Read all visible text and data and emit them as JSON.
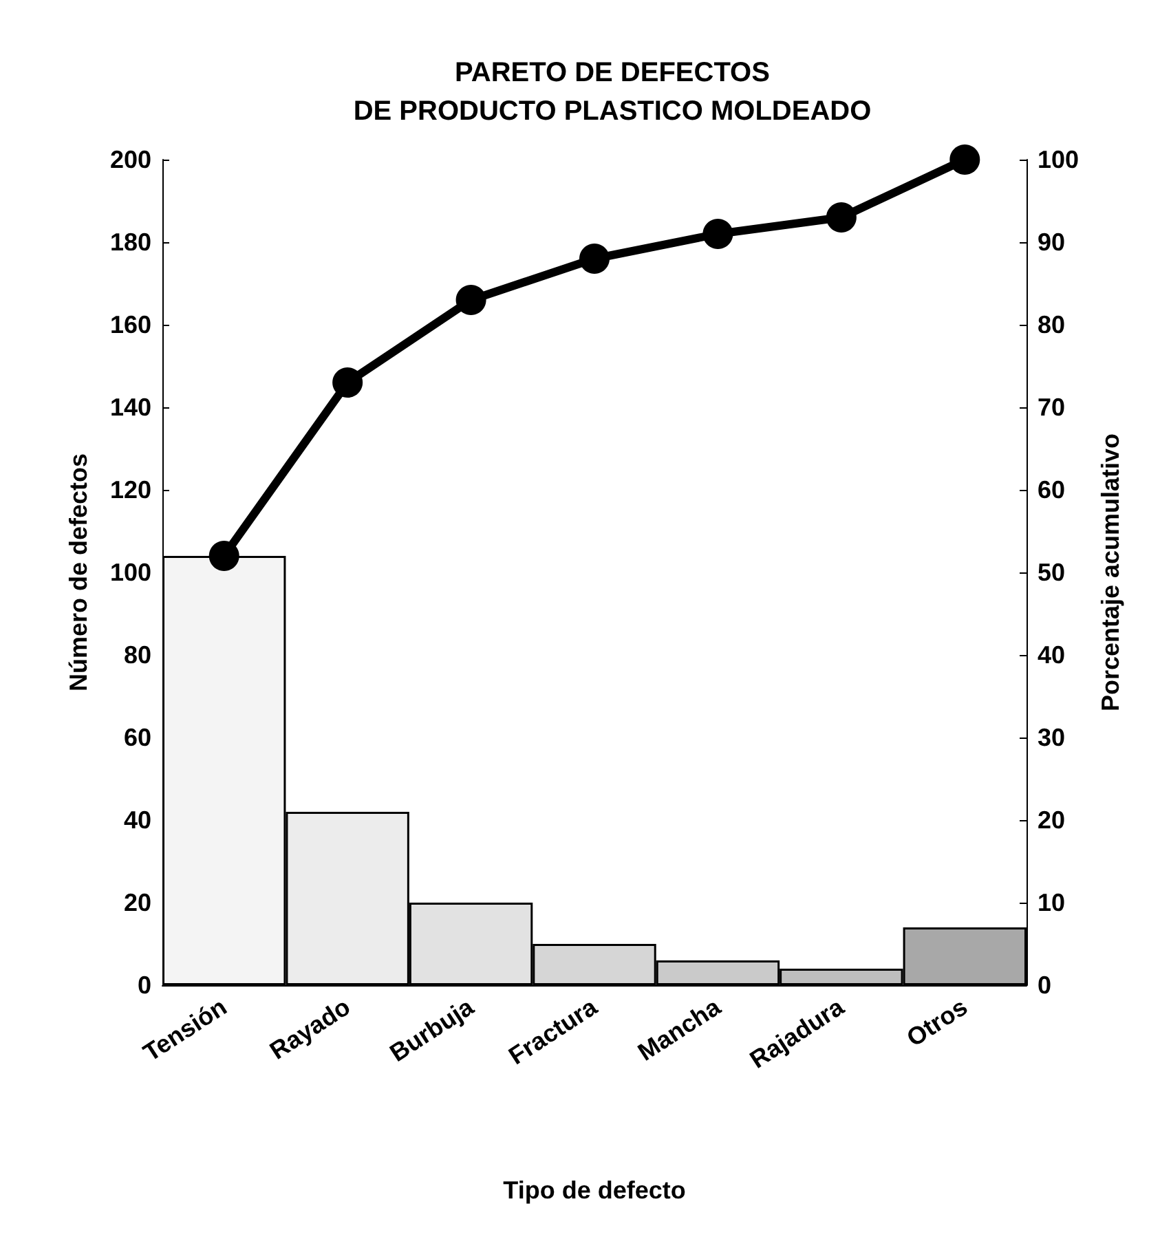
{
  "chart_data": {
    "type": "bar",
    "title": "PARETO DE DEFECTOS\nDE PRODUCTO PLASTICO MOLDEADO",
    "xlabel": "Tipo de defecto",
    "ylabel": "Número de defectos",
    "y2label": "Porcentaje acumulativo",
    "categories": [
      "Tensión",
      "Rayado",
      "Burbuja",
      "Fractura",
      "Mancha",
      "Rajadura",
      "Otros"
    ],
    "series": [
      {
        "colors": [
          "#f4f4f4",
          "#ececec",
          "#e2e2e2",
          "#d6d6d6",
          "#cacaca",
          "#bebebe",
          "#a8a8a8"
        ],
        "values": [
          104,
          42,
          20,
          10,
          6,
          4,
          14
        ]
      },
      {
        "type": "line",
        "axis": "y2",
        "color": "#000000",
        "values": [
          52,
          73,
          83,
          88,
          91,
          93,
          100
        ]
      }
    ],
    "ylim": [
      0,
      200
    ],
    "yticks": [
      0,
      20,
      40,
      60,
      80,
      100,
      120,
      140,
      160,
      180,
      200
    ],
    "y2lim": [
      0,
      100
    ],
    "y2ticks": [
      0,
      10,
      20,
      30,
      40,
      50,
      60,
      70,
      80,
      90,
      100
    ],
    "grid": false,
    "marker": "circle",
    "line_style": "solid"
  }
}
